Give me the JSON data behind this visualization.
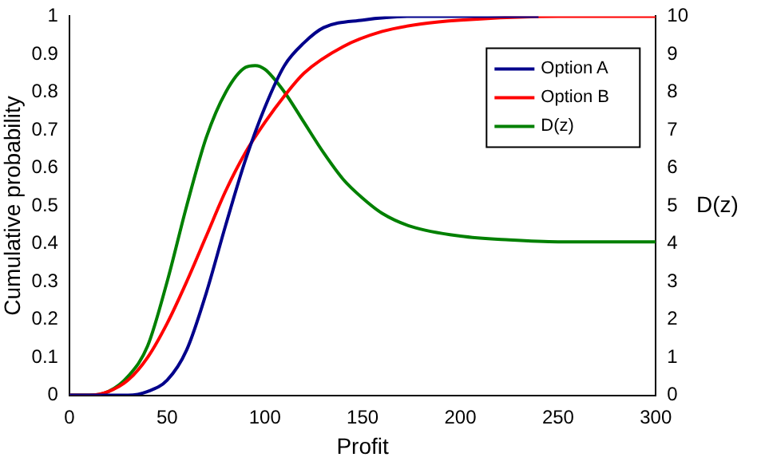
{
  "chart_data": {
    "type": "line",
    "xlabel": "Profit",
    "ylabel": "Cumulative probability",
    "y2label": "D(z)",
    "xlim": [
      0,
      300
    ],
    "xticks": [
      0,
      50,
      100,
      150,
      200,
      250,
      300
    ],
    "ylim": [
      0,
      1
    ],
    "yticks": [
      0,
      0.1,
      0.2,
      0.3,
      0.4,
      0.5,
      0.6,
      0.7,
      0.8,
      0.9,
      1
    ],
    "y2lim": [
      0,
      10
    ],
    "y2ticks": [
      0,
      1,
      2,
      3,
      4,
      5,
      6,
      7,
      8,
      9,
      10
    ],
    "grid": false,
    "legend": "top right",
    "marker": "none",
    "line_style": "solid",
    "series": [
      {
        "name": "Option A",
        "color": "#00008b",
        "x": [
          0,
          30,
          40,
          50,
          60,
          70,
          80,
          90,
          100,
          110,
          120,
          130,
          150,
          175,
          240
        ],
        "values": [
          0,
          0,
          0.01,
          0.04,
          0.12,
          0.27,
          0.45,
          0.62,
          0.76,
          0.87,
          0.93,
          0.97,
          0.99,
          1,
          1
        ]
      },
      {
        "name": "Option B",
        "color": "#ff0000",
        "x": [
          0,
          10,
          20,
          30,
          40,
          50,
          60,
          70,
          80,
          90,
          100,
          110,
          120,
          140,
          160,
          180,
          200,
          250,
          300
        ],
        "values": [
          0,
          0,
          0.01,
          0.04,
          0.1,
          0.19,
          0.3,
          0.42,
          0.54,
          0.64,
          0.72,
          0.79,
          0.85,
          0.92,
          0.96,
          0.98,
          0.99,
          1,
          1
        ]
      },
      {
        "name": "D(z)",
        "color": "#008000",
        "axis": "y2",
        "x": [
          0,
          10,
          20,
          30,
          40,
          50,
          60,
          70,
          80,
          90,
          95,
          100,
          110,
          120,
          130,
          140,
          150,
          160,
          175,
          200,
          225,
          250,
          300
        ],
        "values": [
          0,
          0,
          0.1,
          0.5,
          1.3,
          3,
          5,
          6.8,
          8,
          8.65,
          8.7,
          8.6,
          8,
          7.2,
          6.4,
          5.7,
          5.2,
          4.8,
          4.45,
          4.2,
          4.1,
          4.05,
          4.05
        ]
      }
    ]
  }
}
